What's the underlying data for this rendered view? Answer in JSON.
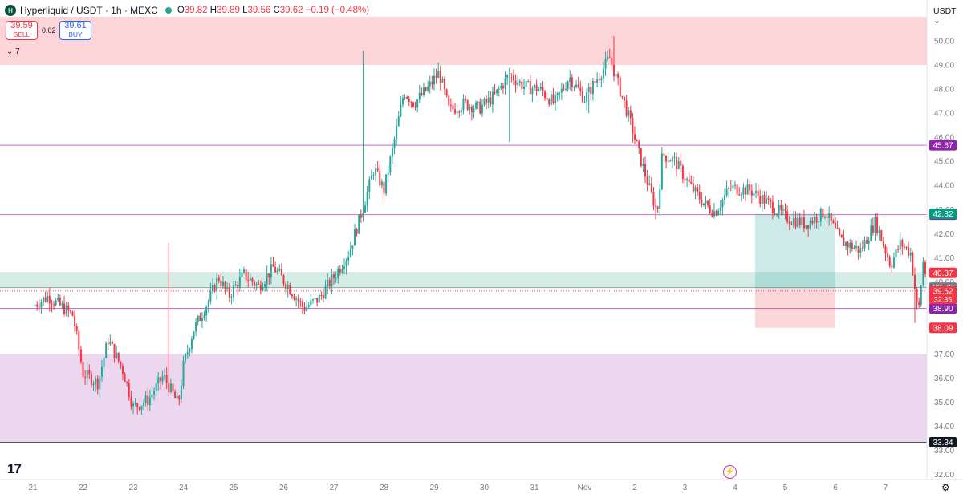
{
  "header": {
    "symbol": "Hyperliquid / USDT · 1h · MEXC",
    "o_label": "O",
    "o_value": "39.82",
    "h_label": "H",
    "h_value": "39.89",
    "l_label": "L",
    "l_value": "39.56",
    "c_label": "C",
    "c_value": "39.62",
    "change": "−0.19 (−0.48%)"
  },
  "trade": {
    "sell_price": "39.59",
    "sell_label": "SELL",
    "spread": "0.02",
    "buy_price": "39.61",
    "buy_label": "BUY"
  },
  "indicator_toggle": "7",
  "currency": "USDT",
  "tv_logo": "17",
  "colors": {
    "up": "#26a69a",
    "down": "#f23645",
    "resistance_zone": "#f9d6d9",
    "support_zone": "#ecd8ef",
    "level_line": "#c86dc8"
  },
  "chart_data": {
    "type": "candlestick",
    "ylim": [
      32.0,
      51.0
    ],
    "y_ticks": [
      "50.00",
      "49.00",
      "48.00",
      "47.00",
      "46.00",
      "45.00",
      "44.00",
      "43.00",
      "42.00",
      "41.00",
      "40.00",
      "39.00",
      "38.00",
      "37.00",
      "36.00",
      "35.00",
      "34.00",
      "33.00",
      "32.00"
    ],
    "x_ticks": [
      {
        "label": "21",
        "day": 0
      },
      {
        "label": "22",
        "day": 1
      },
      {
        "label": "23",
        "day": 2
      },
      {
        "label": "24",
        "day": 3
      },
      {
        "label": "25",
        "day": 4
      },
      {
        "label": "26",
        "day": 5
      },
      {
        "label": "27",
        "day": 6
      },
      {
        "label": "28",
        "day": 7
      },
      {
        "label": "29",
        "day": 8
      },
      {
        "label": "30",
        "day": 9
      },
      {
        "label": "31",
        "day": 10
      },
      {
        "label": "Nov",
        "day": 11
      },
      {
        "label": "2",
        "day": 12
      },
      {
        "label": "3",
        "day": 13
      },
      {
        "label": "4",
        "day": 14
      },
      {
        "label": "5",
        "day": 15
      },
      {
        "label": "6",
        "day": 16
      },
      {
        "label": "7",
        "day": 17
      }
    ],
    "zones": [
      {
        "name": "resistance-zone",
        "from": 49.0,
        "to": 51.0,
        "color": "#fbd5d8"
      },
      {
        "name": "support-zone",
        "from": 33.34,
        "to": 37.0,
        "color": "#ecd7ef"
      },
      {
        "name": "mid-zone",
        "from": 39.76,
        "to": 40.37,
        "color": "#d4ede7"
      }
    ],
    "levels": [
      {
        "value": 45.67,
        "label": "45.67",
        "color": "#c86dc8",
        "tag": "#8e24aa"
      },
      {
        "value": 42.79,
        "label": "42.79",
        "color": "#c86dc8",
        "tag": "#8e24aa"
      },
      {
        "value": 40.37,
        "label": "40.37",
        "color": "#9e9e9e",
        "tag": "#f23645"
      },
      {
        "value": 39.76,
        "label": "39.76",
        "color": "#9e9e9e",
        "tag": "#787b86"
      },
      {
        "value": 38.9,
        "label": "38.90",
        "color": "#c86dc8",
        "tag": "#8e24aa"
      },
      {
        "value": 33.34,
        "label": "33.34",
        "color": "#555555",
        "tag": "#131722"
      }
    ],
    "tags": [
      {
        "value": 42.82,
        "label": "42.82",
        "color": "#089981"
      },
      {
        "value": 38.09,
        "label": "38.09",
        "color": "#f23645"
      }
    ],
    "last_price": {
      "value": 39.62,
      "label": "39.62",
      "countdown": "32:35",
      "color": "#f23645"
    },
    "position": {
      "start_day": 14.4,
      "end_day": 16.0,
      "entry": 39.7,
      "target": 42.82,
      "stop": 38.09
    },
    "candles_per_day": 24,
    "anchors": [
      [
        0,
        39.0
      ],
      [
        0.3,
        39.4
      ],
      [
        0.8,
        38.6
      ],
      [
        1.0,
        36.2
      ],
      [
        1.3,
        35.8
      ],
      [
        1.5,
        37.6
      ],
      [
        1.8,
        36.3
      ],
      [
        2.0,
        34.8
      ],
      [
        2.3,
        35.1
      ],
      [
        2.6,
        36.1
      ],
      [
        2.9,
        34.9
      ],
      [
        3.0,
        36.5
      ],
      [
        3.2,
        38.0
      ],
      [
        3.5,
        39.2
      ],
      [
        3.7,
        40.2
      ],
      [
        3.9,
        39.4
      ],
      [
        4.2,
        40.3
      ],
      [
        4.5,
        39.8
      ],
      [
        4.8,
        40.6
      ],
      [
        5.2,
        39.5
      ],
      [
        5.4,
        38.9
      ],
      [
        5.7,
        39.3
      ],
      [
        6.0,
        40.2
      ],
      [
        6.3,
        41.2
      ],
      [
        6.6,
        43.2
      ],
      [
        6.8,
        44.7
      ],
      [
        7.0,
        43.8
      ],
      [
        7.2,
        45.8
      ],
      [
        7.4,
        47.9
      ],
      [
        7.6,
        47.4
      ],
      [
        7.9,
        48.1
      ],
      [
        8.1,
        48.7
      ],
      [
        8.3,
        47.1
      ],
      [
        8.6,
        47.4
      ],
      [
        8.9,
        47.2
      ],
      [
        9.2,
        47.7
      ],
      [
        9.5,
        48.6
      ],
      [
        9.8,
        48.1
      ],
      [
        10.1,
        48.0
      ],
      [
        10.4,
        47.4
      ],
      [
        10.7,
        48.5
      ],
      [
        11.0,
        47.6
      ],
      [
        11.3,
        48.6
      ],
      [
        11.5,
        49.3
      ],
      [
        11.7,
        48.0
      ],
      [
        11.9,
        46.7
      ],
      [
        12.1,
        45.2
      ],
      [
        12.3,
        43.8
      ],
      [
        12.45,
        42.9
      ],
      [
        12.55,
        45.3
      ],
      [
        12.8,
        45.0
      ],
      [
        13.1,
        44.0
      ],
      [
        13.4,
        43.2
      ],
      [
        13.6,
        42.9
      ],
      [
        13.9,
        43.9
      ],
      [
        14.3,
        43.8
      ],
      [
        14.7,
        43.2
      ],
      [
        15.0,
        42.7
      ],
      [
        15.4,
        42.4
      ],
      [
        15.8,
        42.9
      ],
      [
        16.1,
        41.7
      ],
      [
        16.5,
        41.3
      ],
      [
        16.8,
        42.5
      ],
      [
        17.1,
        40.7
      ],
      [
        17.3,
        41.6
      ],
      [
        17.5,
        41.2
      ],
      [
        17.65,
        38.6
      ],
      [
        17.75,
        40.8
      ],
      [
        17.85,
        39.8
      ],
      [
        17.95,
        39.62
      ]
    ],
    "spikes": [
      [
        2.7,
        41.6
      ],
      [
        5.3,
        39.0
      ],
      [
        6.6,
        49.6
      ],
      [
        9.5,
        45.8
      ],
      [
        11.1,
        47.0
      ],
      [
        11.6,
        50.2
      ],
      [
        12.4,
        42.6
      ],
      [
        17.6,
        38.3
      ]
    ]
  }
}
